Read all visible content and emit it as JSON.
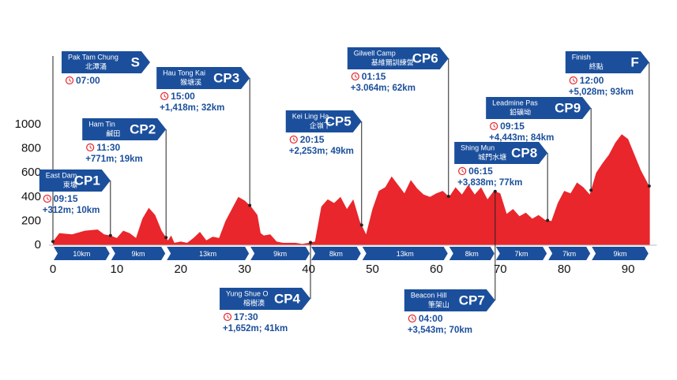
{
  "chart_data": {
    "type": "area",
    "color": "#e8262b",
    "x": [
      0,
      1,
      3,
      5,
      7,
      8,
      9,
      10,
      11,
      12,
      13,
      14,
      15,
      16,
      17,
      18,
      18.5,
      19,
      20,
      21,
      22,
      23,
      24,
      25,
      26,
      27,
      28,
      29,
      30,
      31,
      32,
      32.5,
      33,
      34,
      35,
      36,
      38,
      39,
      40,
      41,
      42,
      43,
      44,
      45,
      46,
      47,
      48,
      49,
      50,
      51,
      52,
      53,
      54,
      55,
      56,
      57,
      58,
      59,
      60,
      61,
      62,
      63,
      64,
      65,
      66,
      67,
      68,
      69,
      70,
      71,
      72,
      73,
      74,
      75,
      76,
      77,
      78,
      79,
      80,
      81,
      82,
      83,
      84,
      85,
      86,
      87,
      88,
      89,
      90,
      91,
      92,
      93.4
    ],
    "values": [
      30,
      100,
      90,
      120,
      130,
      90,
      80,
      60,
      120,
      100,
      60,
      220,
      310,
      250,
      120,
      40,
      80,
      20,
      30,
      20,
      60,
      110,
      40,
      70,
      60,
      200,
      300,
      400,
      370,
      320,
      250,
      100,
      80,
      90,
      30,
      20,
      20,
      10,
      20,
      30,
      320,
      380,
      350,
      400,
      300,
      380,
      200,
      90,
      300,
      450,
      480,
      570,
      500,
      430,
      540,
      470,
      420,
      400,
      430,
      450,
      400,
      480,
      420,
      500,
      420,
      480,
      380,
      450,
      430,
      260,
      300,
      240,
      270,
      220,
      250,
      210,
      200,
      350,
      450,
      430,
      520,
      480,
      420,
      600,
      680,
      750,
      850,
      920,
      880,
      750,
      620,
      480
    ],
    "xlim": [
      0,
      94.5
    ],
    "ylim": [
      0,
      1000
    ],
    "xticks": [
      0,
      10,
      20,
      30,
      40,
      50,
      60,
      70,
      80,
      90
    ],
    "yticks": [
      0,
      200,
      400,
      600,
      800,
      1000
    ],
    "checkpoints": [
      {
        "name": "Pak Tam Chung",
        "name_zh": "北潭涌",
        "code": "S",
        "time": "07:00",
        "km": 0
      },
      {
        "name": "East Dam",
        "name_zh": "東壩",
        "code": "CP1",
        "time": "09:15",
        "gain": "+312m; 10km",
        "km": 9.0
      },
      {
        "name": "Ham Tin",
        "name_zh": "鹹田",
        "code": "CP2",
        "time": "11:30",
        "gain": "+771m; 19km",
        "km": 17.7
      },
      {
        "name": "Hau Tong Kai",
        "name_zh": "猴塘溪",
        "code": "CP3",
        "time": "15:00",
        "gain": "+1,418m; 32km",
        "km": 30.8
      },
      {
        "name": "Yung Shue O",
        "name_zh": "榕樹澳",
        "code": "CP4",
        "time": "17:30",
        "gain": "+1,652m; 41km",
        "km": 40.3
      },
      {
        "name": "Kei Ling Ha",
        "name_zh": "企嶺下",
        "code": "CP5",
        "time": "20:15",
        "gain": "+2,253m; 49km",
        "km": 48.3
      },
      {
        "name": "Gilwell Camp",
        "name_zh": "基維爾訓練營",
        "code": "CP6",
        "time": "01:15",
        "gain": "+3.064m; 62km",
        "km": 61.9
      },
      {
        "name": "Beacon Hill",
        "name_zh": "筆架山",
        "code": "CP7",
        "time": "04:00",
        "gain": "+3,543m; 70km",
        "km": 69.2
      },
      {
        "name": "Shing Mun",
        "name_zh": "城門水塘",
        "code": "CP8",
        "time": "06:15",
        "gain": "+3,838m; 77km",
        "km": 77.4
      },
      {
        "name": "Leadmine Pas",
        "name_zh": "鉛礦坳",
        "code": "CP9",
        "time": "09:15",
        "gain": "+4,443m; 84km",
        "km": 84.2
      },
      {
        "name": "Finish",
        "name_zh": "終點",
        "code": "F",
        "time": "12:00",
        "gain": "+5,028m; 93km",
        "km": 93.3
      }
    ],
    "segments": [
      "10km",
      "9km",
      "13km",
      "9km",
      "8km",
      "13km",
      "8km",
      "7km",
      "7km",
      "9km"
    ]
  }
}
